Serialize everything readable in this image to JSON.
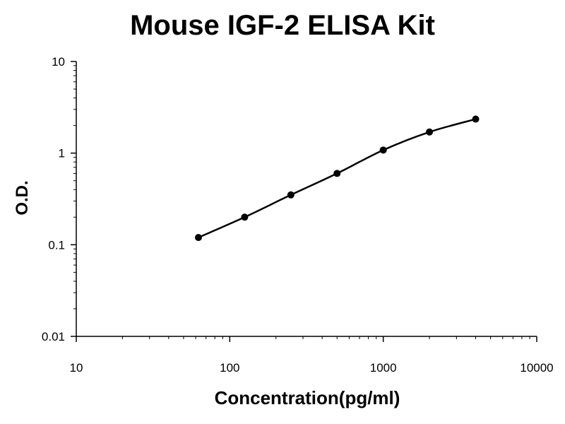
{
  "chart_data": {
    "type": "line",
    "title": "Mouse IGF-2 ELISA Kit",
    "xlabel": "Concentration(pg/ml)",
    "ylabel": "O.D.",
    "x_scale": "log",
    "y_scale": "log",
    "xlim": [
      10,
      10000
    ],
    "ylim": [
      0.01,
      10
    ],
    "x_ticks": [
      "10",
      "100",
      "1000",
      "10000"
    ],
    "y_ticks": [
      "0.01",
      "0.1",
      "1",
      "10"
    ],
    "grid": false,
    "legend": "none",
    "series": [
      {
        "x": [
          62.5,
          125,
          250,
          500,
          1000,
          2000,
          4000
        ],
        "y": [
          0.12,
          0.2,
          0.35,
          0.6,
          1.08,
          1.7,
          2.35
        ]
      }
    ],
    "colors": {
      "line": "#000000",
      "marker": "#000000"
    }
  }
}
